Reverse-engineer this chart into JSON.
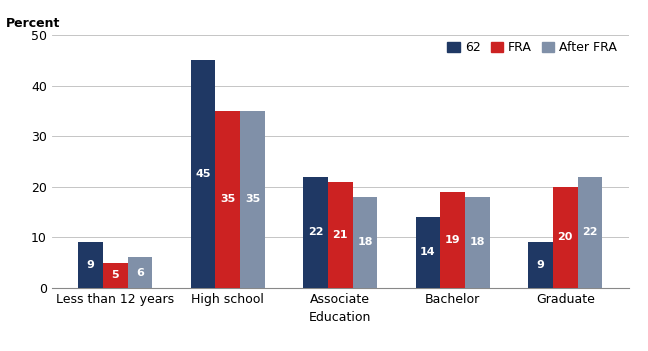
{
  "cat_labels": [
    "Less than 12 years",
    "High school",
    "Associate",
    "Bachelor",
    "Graduate"
  ],
  "series": {
    "62": [
      9,
      45,
      22,
      14,
      9
    ],
    "FRA": [
      5,
      35,
      21,
      19,
      20
    ],
    "After FRA": [
      6,
      35,
      18,
      18,
      22
    ]
  },
  "colors": {
    "62": "#1f3864",
    "FRA": "#cc2222",
    "After FRA": "#8090a8"
  },
  "legend_labels": [
    "62",
    "FRA",
    "After FRA"
  ],
  "percent_label": "Percent",
  "xlabel": "Education",
  "ylim": [
    0,
    50
  ],
  "yticks": [
    0,
    10,
    20,
    30,
    40,
    50
  ],
  "bar_width": 0.22,
  "label_fontsize": 8,
  "axis_fontsize": 9,
  "legend_fontsize": 9,
  "tick_fontsize": 9
}
